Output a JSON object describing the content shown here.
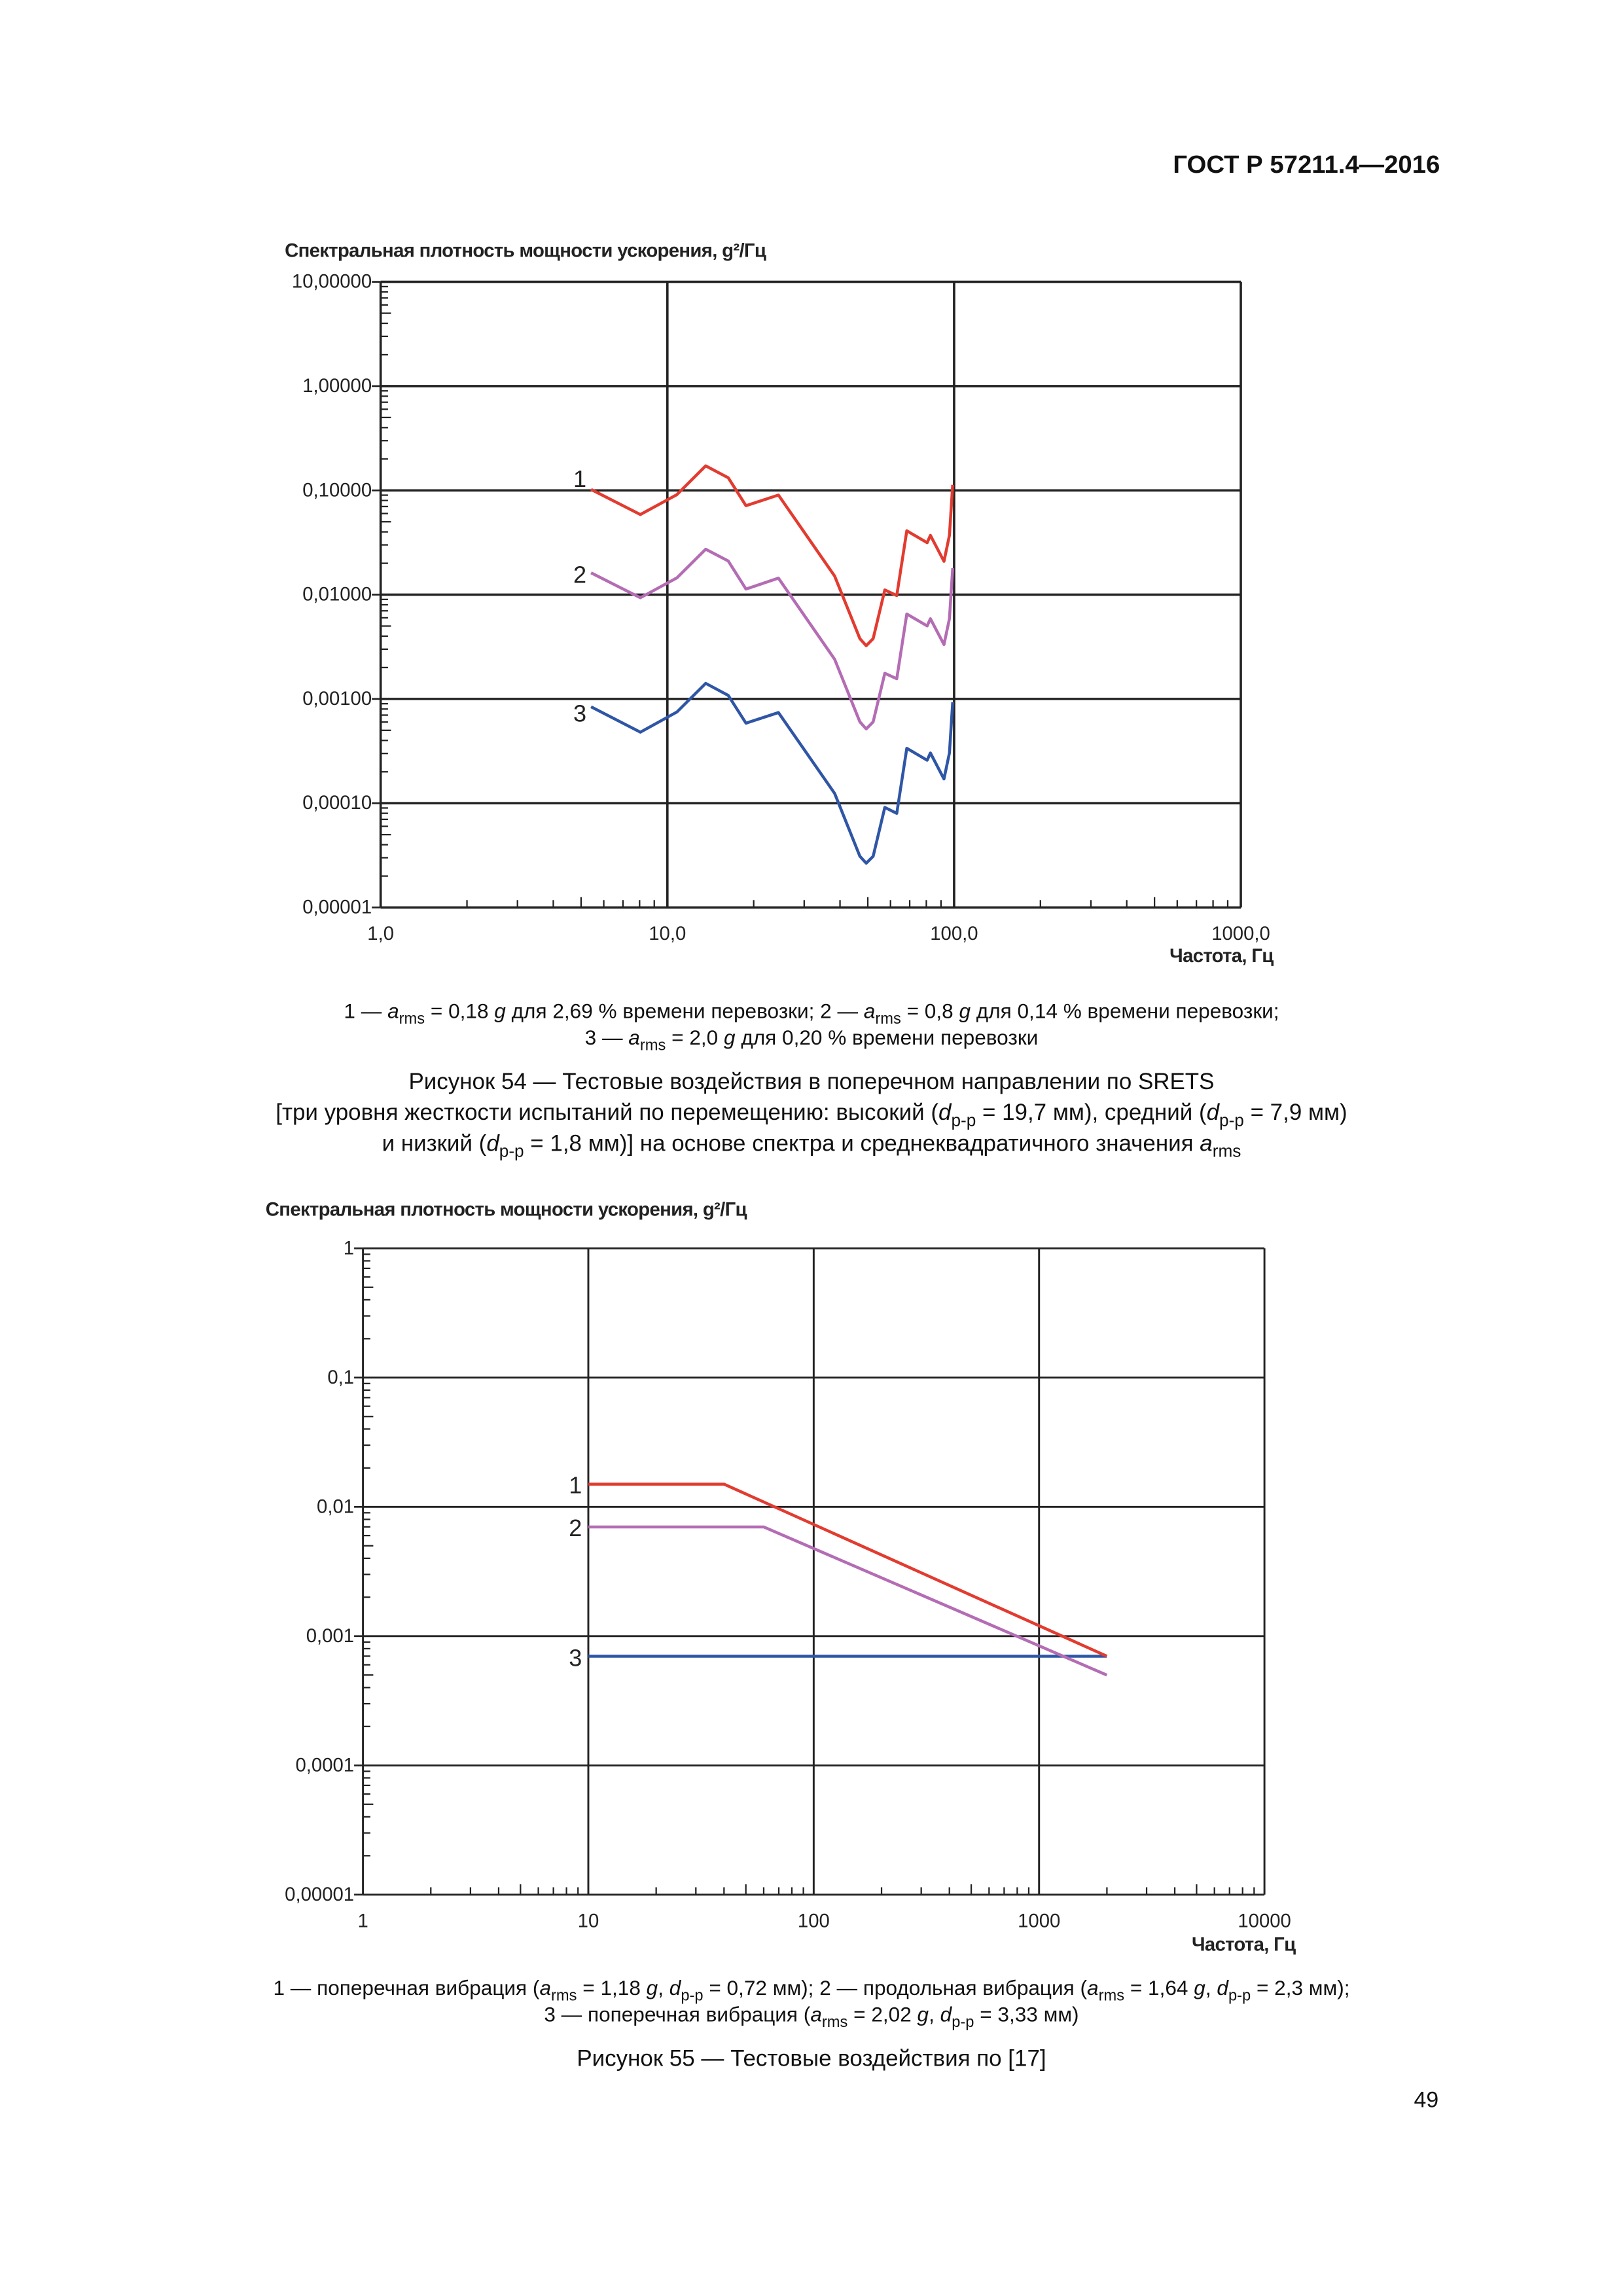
{
  "header": "ГОСТ Р 57211.4—2016",
  "page_number": "49",
  "chart_data": [
    {
      "type": "line",
      "title": "Спектральная плотность мощности ускорения, g²/Гц",
      "xlabel": "Частота, Гц",
      "xscale": "log",
      "yscale": "log",
      "xlim": [
        1,
        1000
      ],
      "ylim": [
        1e-05,
        10
      ],
      "grid": true,
      "xticks": [
        "1,0",
        "10,0",
        "100,0",
        "1000,0"
      ],
      "yticks": [
        "0,00001",
        "0,00010",
        "0,00100",
        "0,01000",
        "0,10000",
        "1,00000",
        "10,00000"
      ],
      "x": [
        5.42,
        8.05,
        10.8,
        13.6,
        16.3,
        18.8,
        24.4,
        38.3,
        46.9,
        49.4,
        52.2,
        57.3,
        63.1,
        68.4,
        80.5,
        82.7,
        92.2,
        96.3,
        98.9
      ],
      "series": [
        {
          "name": "1",
          "color": "#2f56a6",
          "values": [
            0.00084,
            0.00048,
            0.00075,
            0.00141,
            0.00108,
            0.000585,
            0.00074,
            0.000124,
            3.1e-05,
            2.66e-05,
            3.1e-05,
            9.1e-05,
            8e-05,
            0.000336,
            0.000258,
            0.000303,
            0.000171,
            0.000303,
            0.00093
          ]
        },
        {
          "name": "2",
          "color": "#b46cb4",
          "values": [
            0.0162,
            0.00933,
            0.0145,
            0.0273,
            0.021,
            0.0113,
            0.0144,
            0.0024,
            0.000603,
            0.000515,
            0.000603,
            0.00176,
            0.00156,
            0.00652,
            0.00501,
            0.00588,
            0.00332,
            0.00588,
            0.018
          ]
        },
        {
          "name": "3",
          "color": "#e23b30",
          "values": [
            0.102,
            0.0587,
            0.0912,
            0.172,
            0.132,
            0.0713,
            0.0903,
            0.0151,
            0.00379,
            0.00324,
            0.00379,
            0.0111,
            0.0098,
            0.041,
            0.0315,
            0.037,
            0.0209,
            0.037,
            0.113
          ]
        }
      ]
    },
    {
      "type": "line",
      "title": "Спектральная плотность мощности ускорения, g²/Гц",
      "xlabel": "Частота, Гц",
      "xscale": "log",
      "yscale": "log",
      "xlim": [
        1,
        10000
      ],
      "ylim": [
        1e-05,
        1
      ],
      "grid": true,
      "xticks": [
        "1",
        "10",
        "100",
        "1000",
        "10000"
      ],
      "yticks": [
        "0,00001",
        "0,0001",
        "0,001",
        "0,01",
        "0,1",
        "1"
      ],
      "series": [
        {
          "name": "1",
          "color": "#2f56a6",
          "x": [
            10,
            2000
          ],
          "values": [
            0.0007,
            0.0007
          ]
        },
        {
          "name": "2",
          "color": "#b46cb4",
          "x": [
            10,
            60,
            2000
          ],
          "values": [
            0.007,
            0.007,
            0.0005
          ]
        },
        {
          "name": "3",
          "color": "#e23b30",
          "x": [
            10,
            40,
            2000
          ],
          "values": [
            0.015,
            0.015,
            0.0007
          ]
        }
      ]
    }
  ],
  "fig54": {
    "legend_line1": [
      {
        "t": "1 — "
      },
      {
        "t": "a",
        "i": 1
      },
      {
        "t": "rms",
        "sub": 1
      },
      {
        "t": " = 0,18 "
      },
      {
        "t": "g",
        "i": 1
      },
      {
        "t": " для 2,69 % времени перевозки; 2 — "
      },
      {
        "t": "a",
        "i": 1
      },
      {
        "t": "rms",
        "sub": 1
      },
      {
        "t": " = 0,8 "
      },
      {
        "t": "g",
        "i": 1
      },
      {
        "t": " для 0,14 % времени перевозки;"
      }
    ],
    "legend_line2": [
      {
        "t": "3 — "
      },
      {
        "t": "a",
        "i": 1
      },
      {
        "t": "rms",
        "sub": 1
      },
      {
        "t": " = 2,0 "
      },
      {
        "t": "g",
        "i": 1
      },
      {
        "t": " для 0,20 % времени перевозки"
      }
    ],
    "caption_line1": [
      {
        "t": "Рисунок 54 — Тестовые воздействия в поперечном направлении по SRETS"
      }
    ],
    "caption_line2": [
      {
        "t": "[три уровня жесткости испытаний по перемещению: высокий ("
      },
      {
        "t": "d",
        "i": 1
      },
      {
        "t": "p-p",
        "sub": 1
      },
      {
        "t": " = 19,7 мм), средний ("
      },
      {
        "t": "d",
        "i": 1
      },
      {
        "t": "p-p",
        "sub": 1
      },
      {
        "t": " = 7,9 мм)"
      }
    ],
    "caption_line3": [
      {
        "t": "и низкий ("
      },
      {
        "t": "d",
        "i": 1
      },
      {
        "t": "p-p",
        "sub": 1
      },
      {
        "t": " = 1,8 мм)] на основе спектра и среднеквадратичного значения "
      },
      {
        "t": "a",
        "i": 1
      },
      {
        "t": "rms",
        "sub": 1
      }
    ]
  },
  "fig55": {
    "legend_line1": [
      {
        "t": "1 — поперечная вибрация ("
      },
      {
        "t": "a",
        "i": 1
      },
      {
        "t": "rms",
        "sub": 1
      },
      {
        "t": " = 1,18 "
      },
      {
        "t": "g",
        "i": 1
      },
      {
        "t": ", "
      },
      {
        "t": "d",
        "i": 1
      },
      {
        "t": "p-p",
        "sub": 1
      },
      {
        "t": " = 0,72 мм); 2 — продольная вибрация ("
      },
      {
        "t": "a",
        "i": 1
      },
      {
        "t": "rms",
        "sub": 1
      },
      {
        "t": " = 1,64 "
      },
      {
        "t": "g",
        "i": 1
      },
      {
        "t": ", "
      },
      {
        "t": "d",
        "i": 1
      },
      {
        "t": "p-p",
        "sub": 1
      },
      {
        "t": " = 2,3 мм);"
      }
    ],
    "legend_line2": [
      {
        "t": "3 — поперечная вибрация ("
      },
      {
        "t": "a",
        "i": 1
      },
      {
        "t": "rms",
        "sub": 1
      },
      {
        "t": " = 2,02 "
      },
      {
        "t": "g",
        "i": 1
      },
      {
        "t": ", "
      },
      {
        "t": "d",
        "i": 1
      },
      {
        "t": "p-p",
        "sub": 1
      },
      {
        "t": " = 3,33 мм)"
      }
    ],
    "caption_line1": [
      {
        "t": "Рисунок 55 — Тестовые воздействия по [17]"
      }
    ]
  }
}
